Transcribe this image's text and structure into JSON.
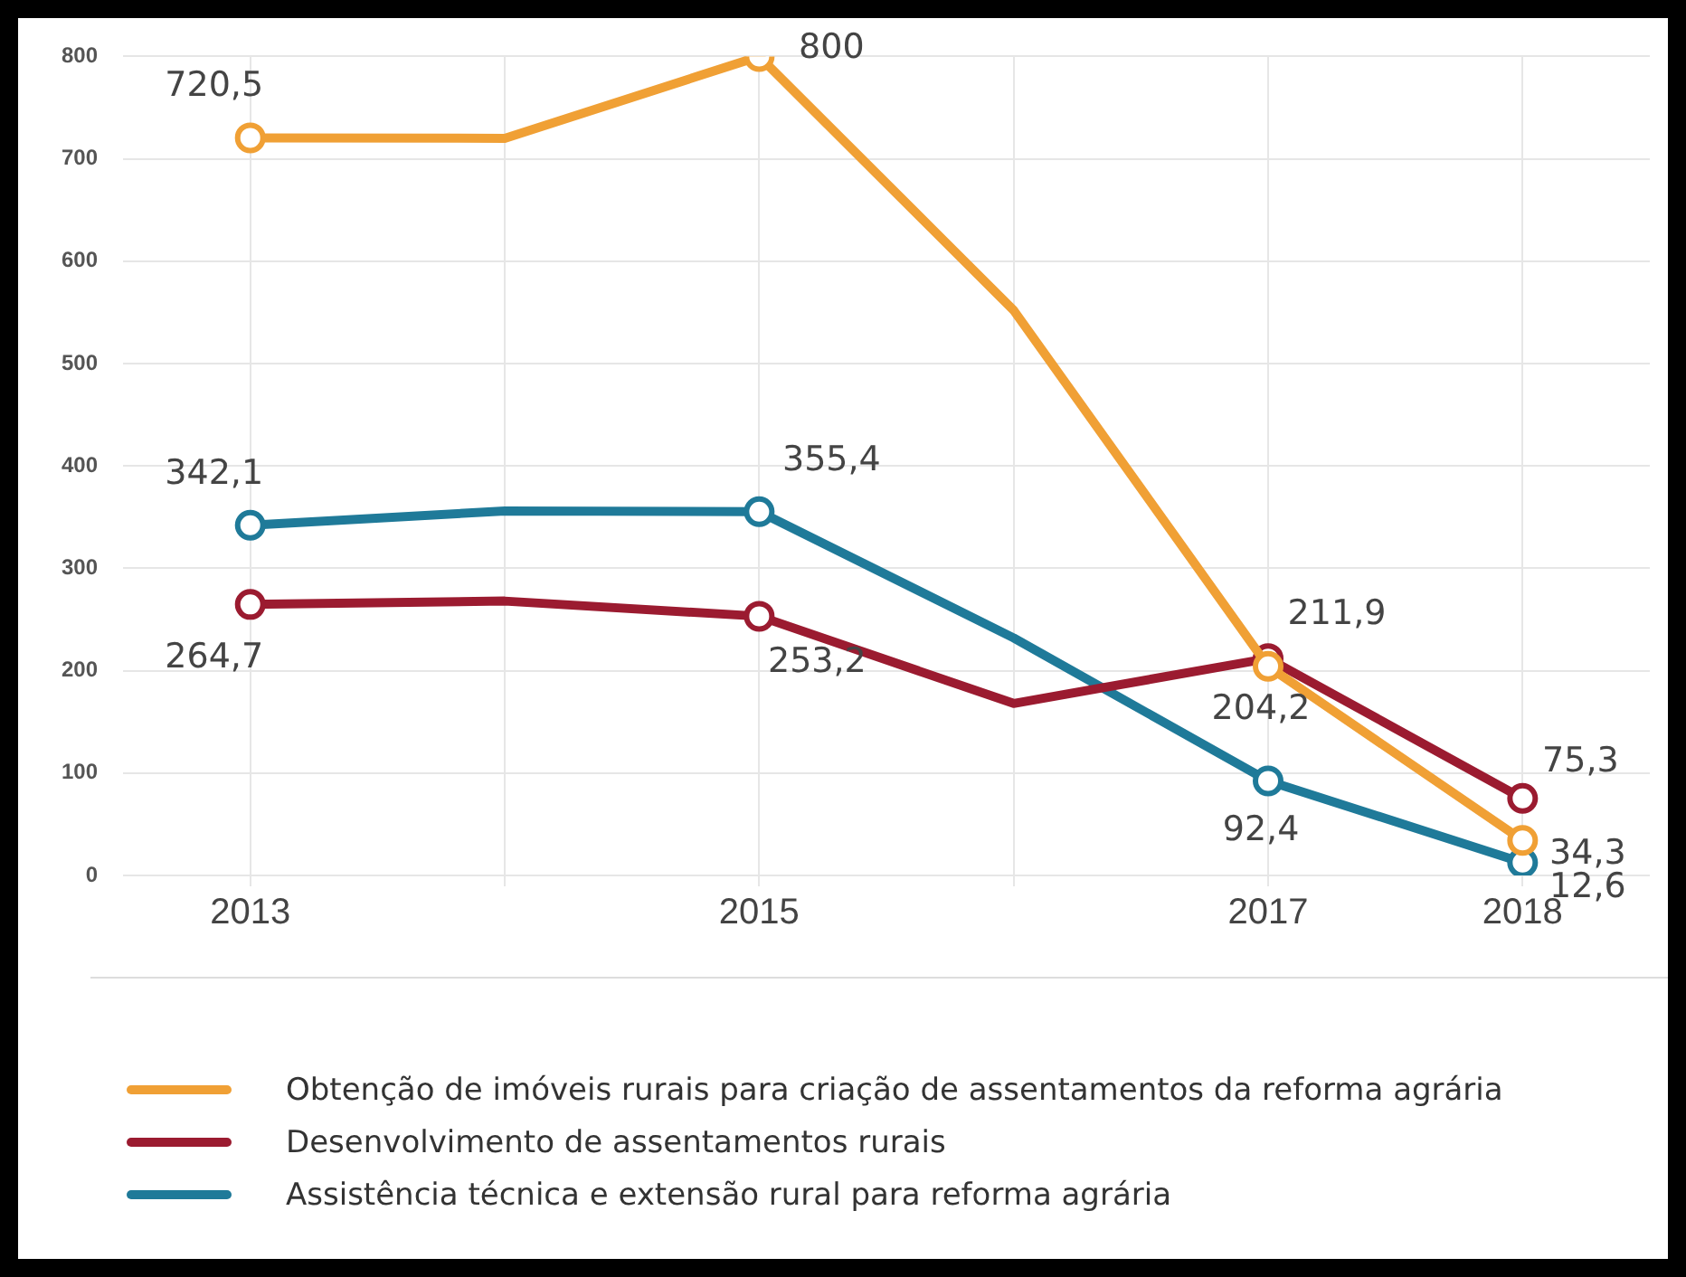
{
  "chart_data": {
    "type": "line",
    "x": [
      2013,
      2014,
      2015,
      2016,
      2017,
      2018
    ],
    "xlim": [
      2012.5,
      2018.5
    ],
    "xticks": [
      2013,
      {
        "value": 2014,
        "label": null
      },
      2015,
      {
        "value": 2016,
        "label": null
      },
      2017,
      2018
    ],
    "ylim": [
      0,
      800
    ],
    "yticks": [
      0,
      100,
      200,
      300,
      400,
      500,
      600,
      700,
      800
    ],
    "series": [
      {
        "name": "Obtenção de imóveis rurais para criação de assentamentos da reforma agrária",
        "color": "#f0a035",
        "values": [
          720.5,
          720,
          800,
          552,
          204.2,
          34.3
        ],
        "value_labels": [
          "720,5",
          null,
          "800",
          null,
          "204,2",
          "34,3"
        ]
      },
      {
        "name": "Desenvolvimento de assentamentos rurais",
        "color": "#9b1b30",
        "values": [
          264.7,
          268,
          253.2,
          168,
          211.9,
          75.3
        ],
        "value_labels": [
          "264,7",
          null,
          "253,2",
          null,
          "211,9",
          "75,3"
        ]
      },
      {
        "name": "Assistência técnica e extensão rural para reforma agrária",
        "color": "#1f7a99",
        "values": [
          342.1,
          356,
          355.4,
          232,
          92.4,
          12.6
        ],
        "value_labels": [
          "342,1",
          null,
          "355,4",
          null,
          "92,4",
          "12,6"
        ]
      }
    ],
    "grid": true,
    "legend": "bottom",
    "marker": "circle",
    "line_style": "solid"
  }
}
